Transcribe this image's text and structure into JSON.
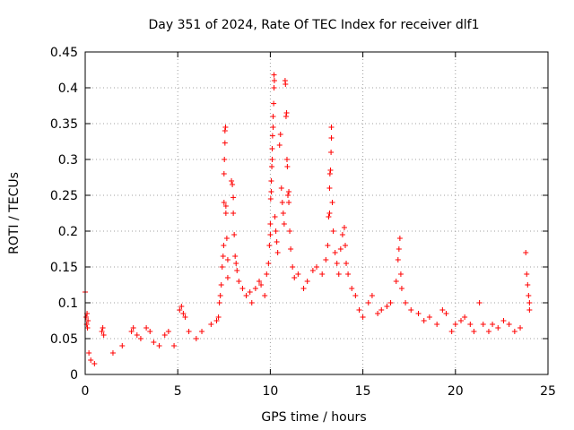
{
  "chart_data": {
    "type": "scatter",
    "title": "Day 351 of 2024, Rate Of TEC Index for receiver dlf1",
    "xlabel": "GPS time / hours",
    "ylabel": "ROTI / TECUs",
    "xlim": [
      0,
      25
    ],
    "ylim": [
      0,
      0.45
    ],
    "xticks": [
      0,
      5,
      10,
      15,
      20,
      25
    ],
    "xtick_labels": [
      "0",
      "5",
      "10",
      "15",
      "20",
      "25"
    ],
    "yticks": [
      0,
      0.05,
      0.1,
      0.15,
      0.2,
      0.25,
      0.3,
      0.35,
      0.4,
      0.45
    ],
    "ytick_labels": [
      "0",
      "0.05",
      "0.1",
      "0.15",
      "0.2",
      "0.25",
      "0.3",
      "0.35",
      "0.4",
      "0.45"
    ],
    "grid": true,
    "marker": "+",
    "marker_color": "#ff0000",
    "series": [
      {
        "name": "dlf1",
        "points": [
          [
            0.0,
            0.115
          ],
          [
            0.05,
            0.08
          ],
          [
            0.08,
            0.07
          ],
          [
            0.1,
            0.085
          ],
          [
            0.12,
            0.065
          ],
          [
            0.15,
            0.075
          ],
          [
            0.2,
            0.03
          ],
          [
            0.3,
            0.02
          ],
          [
            0.5,
            0.015
          ],
          [
            0.9,
            0.06
          ],
          [
            0.95,
            0.065
          ],
          [
            1.0,
            0.055
          ],
          [
            1.5,
            0.03
          ],
          [
            2.0,
            0.04
          ],
          [
            2.5,
            0.06
          ],
          [
            2.6,
            0.065
          ],
          [
            2.8,
            0.055
          ],
          [
            3.0,
            0.05
          ],
          [
            3.3,
            0.065
          ],
          [
            3.5,
            0.06
          ],
          [
            3.7,
            0.045
          ],
          [
            4.0,
            0.04
          ],
          [
            4.3,
            0.055
          ],
          [
            4.5,
            0.06
          ],
          [
            4.8,
            0.04
          ],
          [
            5.1,
            0.09
          ],
          [
            5.2,
            0.095
          ],
          [
            5.3,
            0.085
          ],
          [
            5.4,
            0.08
          ],
          [
            5.6,
            0.06
          ],
          [
            6.0,
            0.05
          ],
          [
            6.3,
            0.06
          ],
          [
            6.8,
            0.07
          ],
          [
            7.1,
            0.075
          ],
          [
            7.2,
            0.08
          ],
          [
            7.25,
            0.1
          ],
          [
            7.3,
            0.11
          ],
          [
            7.35,
            0.125
          ],
          [
            7.4,
            0.15
          ],
          [
            7.45,
            0.165
          ],
          [
            7.48,
            0.18
          ],
          [
            7.5,
            0.24
          ],
          [
            7.5,
            0.28
          ],
          [
            7.52,
            0.3
          ],
          [
            7.55,
            0.323
          ],
          [
            7.55,
            0.34
          ],
          [
            7.58,
            0.345
          ],
          [
            7.6,
            0.225
          ],
          [
            7.6,
            0.235
          ],
          [
            7.65,
            0.19
          ],
          [
            7.7,
            0.16
          ],
          [
            7.7,
            0.135
          ],
          [
            7.9,
            0.27
          ],
          [
            7.95,
            0.265
          ],
          [
            8.0,
            0.247
          ],
          [
            8.0,
            0.225
          ],
          [
            8.05,
            0.195
          ],
          [
            8.1,
            0.165
          ],
          [
            8.15,
            0.155
          ],
          [
            8.2,
            0.145
          ],
          [
            8.3,
            0.13
          ],
          [
            8.5,
            0.12
          ],
          [
            8.7,
            0.11
          ],
          [
            8.9,
            0.115
          ],
          [
            9.0,
            0.1
          ],
          [
            9.2,
            0.12
          ],
          [
            9.4,
            0.13
          ],
          [
            9.5,
            0.125
          ],
          [
            9.7,
            0.11
          ],
          [
            9.8,
            0.14
          ],
          [
            9.9,
            0.155
          ],
          [
            9.95,
            0.18
          ],
          [
            10.0,
            0.195
          ],
          [
            10.0,
            0.21
          ],
          [
            10.02,
            0.245
          ],
          [
            10.05,
            0.255
          ],
          [
            10.05,
            0.27
          ],
          [
            10.08,
            0.29
          ],
          [
            10.1,
            0.3
          ],
          [
            10.1,
            0.315
          ],
          [
            10.12,
            0.333
          ],
          [
            10.15,
            0.345
          ],
          [
            10.15,
            0.36
          ],
          [
            10.18,
            0.378
          ],
          [
            10.2,
            0.4
          ],
          [
            10.2,
            0.418
          ],
          [
            10.22,
            0.41
          ],
          [
            10.25,
            0.22
          ],
          [
            10.3,
            0.2
          ],
          [
            10.35,
            0.185
          ],
          [
            10.4,
            0.17
          ],
          [
            10.5,
            0.32
          ],
          [
            10.55,
            0.335
          ],
          [
            10.6,
            0.26
          ],
          [
            10.65,
            0.24
          ],
          [
            10.7,
            0.225
          ],
          [
            10.75,
            0.21
          ],
          [
            10.8,
            0.41
          ],
          [
            10.82,
            0.405
          ],
          [
            10.85,
            0.36
          ],
          [
            10.88,
            0.365
          ],
          [
            10.9,
            0.3
          ],
          [
            10.92,
            0.29
          ],
          [
            10.95,
            0.25
          ],
          [
            11.0,
            0.255
          ],
          [
            11.0,
            0.24
          ],
          [
            11.05,
            0.2
          ],
          [
            11.1,
            0.175
          ],
          [
            11.2,
            0.15
          ],
          [
            11.3,
            0.135
          ],
          [
            11.5,
            0.14
          ],
          [
            11.8,
            0.12
          ],
          [
            12.0,
            0.13
          ],
          [
            12.3,
            0.145
          ],
          [
            12.5,
            0.15
          ],
          [
            12.8,
            0.14
          ],
          [
            13.0,
            0.16
          ],
          [
            13.1,
            0.18
          ],
          [
            13.15,
            0.22
          ],
          [
            13.2,
            0.225
          ],
          [
            13.2,
            0.26
          ],
          [
            13.22,
            0.28
          ],
          [
            13.25,
            0.285
          ],
          [
            13.28,
            0.31
          ],
          [
            13.3,
            0.33
          ],
          [
            13.3,
            0.345
          ],
          [
            13.35,
            0.24
          ],
          [
            13.4,
            0.2
          ],
          [
            13.5,
            0.17
          ],
          [
            13.6,
            0.155
          ],
          [
            13.7,
            0.14
          ],
          [
            13.8,
            0.175
          ],
          [
            13.9,
            0.195
          ],
          [
            14.0,
            0.205
          ],
          [
            14.05,
            0.18
          ],
          [
            14.1,
            0.155
          ],
          [
            14.2,
            0.14
          ],
          [
            14.4,
            0.12
          ],
          [
            14.6,
            0.11
          ],
          [
            14.8,
            0.09
          ],
          [
            15.0,
            0.08
          ],
          [
            15.3,
            0.1
          ],
          [
            15.5,
            0.11
          ],
          [
            15.8,
            0.085
          ],
          [
            16.0,
            0.09
          ],
          [
            16.3,
            0.095
          ],
          [
            16.5,
            0.1
          ],
          [
            16.8,
            0.13
          ],
          [
            16.9,
            0.16
          ],
          [
            16.95,
            0.175
          ],
          [
            17.0,
            0.19
          ],
          [
            17.05,
            0.14
          ],
          [
            17.1,
            0.12
          ],
          [
            17.3,
            0.1
          ],
          [
            17.6,
            0.09
          ],
          [
            18.0,
            0.085
          ],
          [
            18.3,
            0.075
          ],
          [
            18.6,
            0.08
          ],
          [
            19.0,
            0.07
          ],
          [
            19.3,
            0.09
          ],
          [
            19.5,
            0.085
          ],
          [
            19.8,
            0.06
          ],
          [
            20.0,
            0.07
          ],
          [
            20.3,
            0.075
          ],
          [
            20.5,
            0.08
          ],
          [
            20.8,
            0.07
          ],
          [
            21.0,
            0.06
          ],
          [
            21.3,
            0.1
          ],
          [
            21.5,
            0.07
          ],
          [
            21.8,
            0.06
          ],
          [
            22.0,
            0.07
          ],
          [
            22.3,
            0.065
          ],
          [
            22.6,
            0.075
          ],
          [
            22.9,
            0.07
          ],
          [
            23.2,
            0.06
          ],
          [
            23.5,
            0.065
          ],
          [
            23.8,
            0.17
          ],
          [
            23.85,
            0.14
          ],
          [
            23.9,
            0.125
          ],
          [
            23.95,
            0.11
          ],
          [
            24.0,
            0.1
          ],
          [
            24.0,
            0.09
          ]
        ]
      }
    ]
  }
}
